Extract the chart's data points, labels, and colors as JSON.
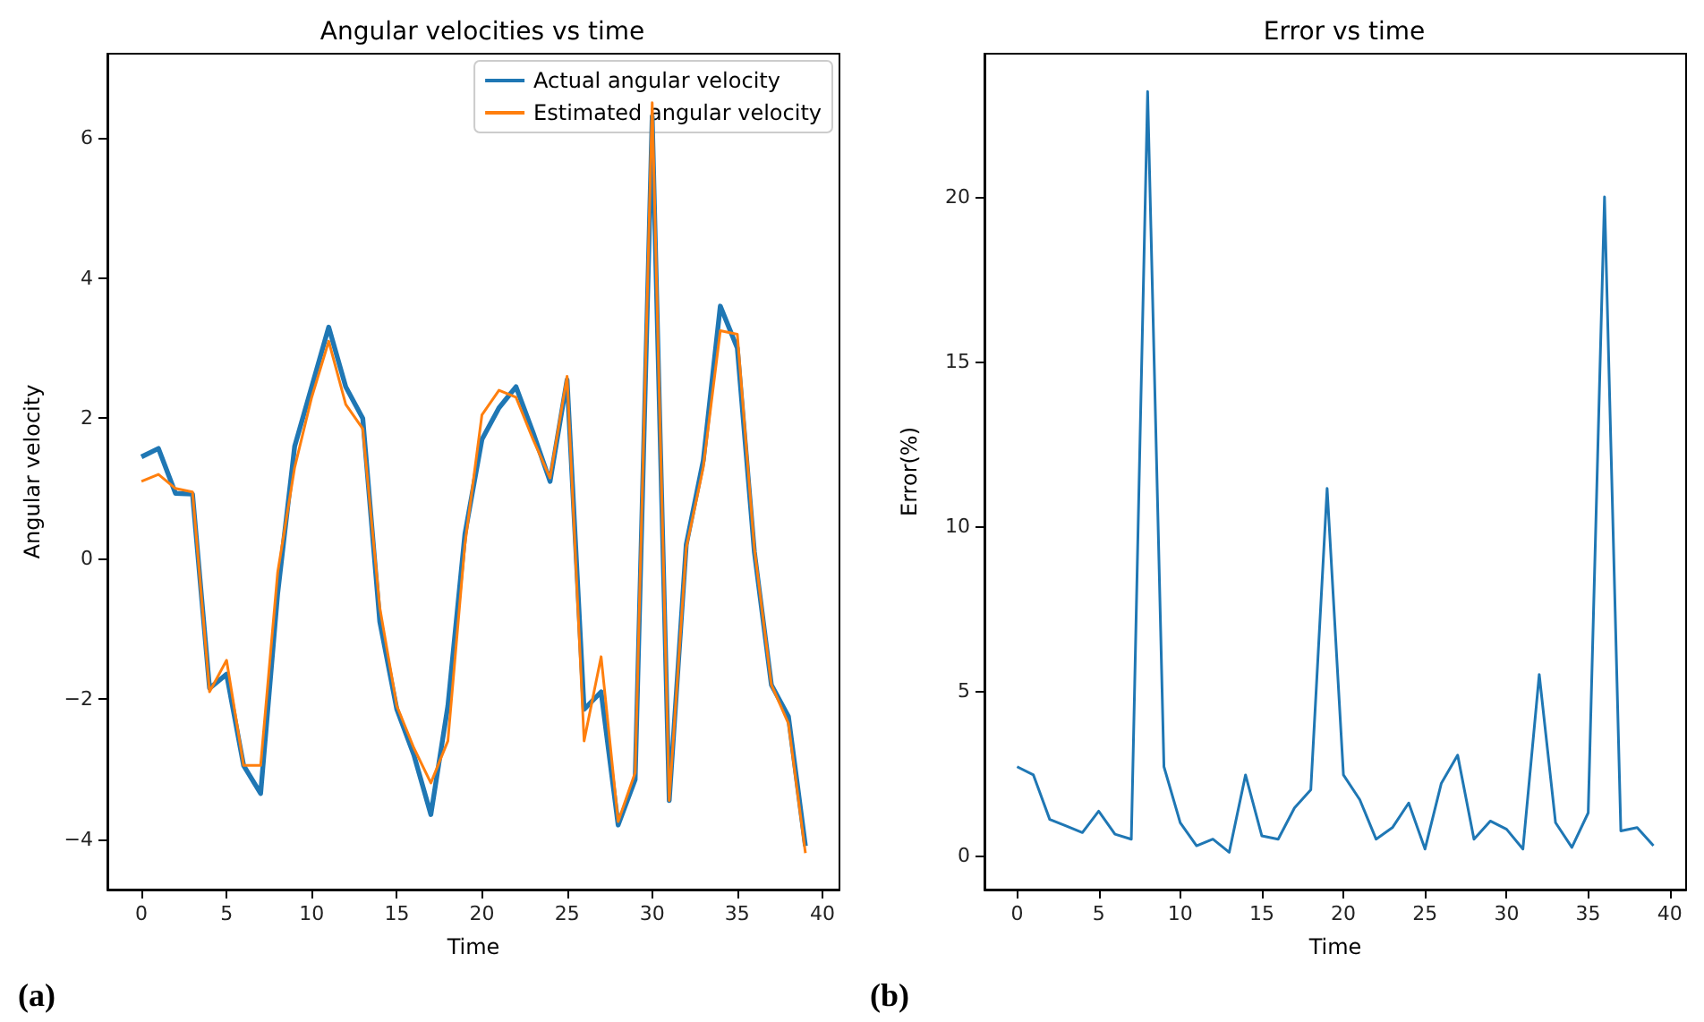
{
  "chart_data": [
    {
      "type": "line",
      "title": "Angular velocities vs time",
      "xlabel": "Time",
      "ylabel": "Angular velocity",
      "annotations": [
        "(a)"
      ],
      "legend": "top right",
      "grid": false,
      "x": [
        0,
        1,
        2,
        3,
        4,
        5,
        6,
        7,
        8,
        9,
        10,
        11,
        12,
        13,
        14,
        15,
        16,
        17,
        18,
        19,
        20,
        21,
        22,
        23,
        24,
        25,
        26,
        27,
        28,
        29,
        30,
        31,
        32,
        33,
        34,
        35,
        36,
        37,
        38,
        39
      ],
      "xlim": [
        -2,
        41
      ],
      "xticks": [
        0,
        5,
        10,
        15,
        20,
        25,
        30,
        35,
        40
      ],
      "ylim": [
        -4.72,
        7.2
      ],
      "yticks": [
        -4,
        -2,
        0,
        2,
        4,
        6
      ],
      "series": [
        {
          "name": "Actual angular velocity",
          "color": "#1f77b4",
          "values": [
            1.45,
            1.57,
            0.93,
            0.92,
            -1.85,
            -1.65,
            -2.95,
            -3.35,
            -0.5,
            1.6,
            2.45,
            3.3,
            2.45,
            2.0,
            -0.9,
            -2.15,
            -2.8,
            -3.65,
            -2.1,
            0.35,
            1.7,
            2.15,
            2.45,
            1.8,
            1.1,
            2.55,
            -2.15,
            -1.9,
            -3.8,
            -3.15,
            6.3,
            -3.45,
            0.2,
            1.4,
            3.6,
            3.0,
            0.1,
            -1.8,
            -2.25,
            -4.1
          ]
        },
        {
          "name": "Estimated angular velocity",
          "color": "#ff7f0e",
          "values": [
            1.1,
            1.2,
            1.0,
            0.95,
            -1.9,
            -1.45,
            -2.95,
            -2.95,
            -0.2,
            1.3,
            2.3,
            3.1,
            2.2,
            1.85,
            -0.7,
            -2.1,
            -2.7,
            -3.2,
            -2.6,
            0.2,
            2.05,
            2.4,
            2.3,
            1.7,
            1.15,
            2.6,
            -2.6,
            -1.4,
            -3.75,
            -3.05,
            6.5,
            -3.45,
            0.15,
            1.3,
            3.25,
            3.2,
            0.15,
            -1.8,
            -2.35,
            -4.2
          ]
        }
      ]
    },
    {
      "type": "line",
      "title": "Error vs time",
      "xlabel": "Time",
      "ylabel": "Error(%)",
      "annotations": [
        "(b)"
      ],
      "grid": false,
      "x": [
        0,
        1,
        2,
        3,
        4,
        5,
        6,
        7,
        8,
        9,
        10,
        11,
        12,
        13,
        14,
        15,
        16,
        17,
        18,
        19,
        20,
        21,
        22,
        23,
        24,
        25,
        26,
        27,
        28,
        29,
        30,
        31,
        32,
        33,
        34,
        35,
        36,
        37,
        38,
        39
      ],
      "xlim": [
        -2,
        41
      ],
      "xticks": [
        0,
        5,
        10,
        15,
        20,
        25,
        30,
        35,
        40
      ],
      "ylim": [
        -1.03,
        24.35
      ],
      "yticks": [
        0,
        5,
        10,
        15,
        20
      ],
      "series": [
        {
          "color": "#1f77b4",
          "values": [
            2.7,
            2.45,
            1.1,
            0.9,
            0.7,
            1.35,
            0.65,
            0.5,
            23.2,
            2.7,
            1.0,
            0.3,
            0.5,
            0.1,
            2.45,
            0.6,
            0.5,
            1.45,
            2.0,
            11.15,
            2.45,
            1.7,
            0.5,
            0.85,
            1.6,
            0.2,
            2.2,
            3.05,
            0.5,
            1.05,
            0.8,
            0.2,
            5.5,
            1.0,
            0.25,
            1.3,
            20.0,
            0.75,
            0.85,
            0.3
          ]
        }
      ]
    }
  ]
}
